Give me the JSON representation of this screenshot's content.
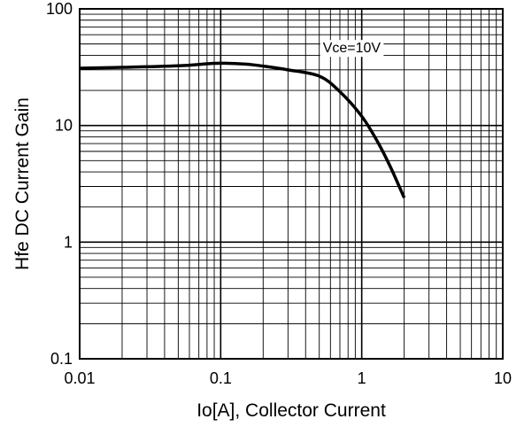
{
  "chart_data": {
    "type": "line",
    "xlabel": "Io[A], Collector Current",
    "ylabel": "Hfe DC Current Gain",
    "x_scale": "log",
    "y_scale": "log",
    "xlim": [
      0.01,
      10
    ],
    "ylim": [
      0.1,
      100
    ],
    "x_ticks": [
      "0.01",
      "0.1",
      "1",
      "10"
    ],
    "y_ticks": [
      "0.1",
      "1",
      "10",
      "100"
    ],
    "grid": true,
    "annotation": "Vce=10V",
    "series": [
      {
        "color": "#000000",
        "x": [
          0.01,
          0.02,
          0.05,
          0.08,
          0.1,
          0.15,
          0.2,
          0.3,
          0.5,
          0.7,
          1.0,
          1.3,
          1.6,
          2.0
        ],
        "y": [
          31,
          31.5,
          32.5,
          33.8,
          34.2,
          33.6,
          32.3,
          30.0,
          26.5,
          19.5,
          12.0,
          7.2,
          4.4,
          2.4
        ]
      }
    ]
  }
}
